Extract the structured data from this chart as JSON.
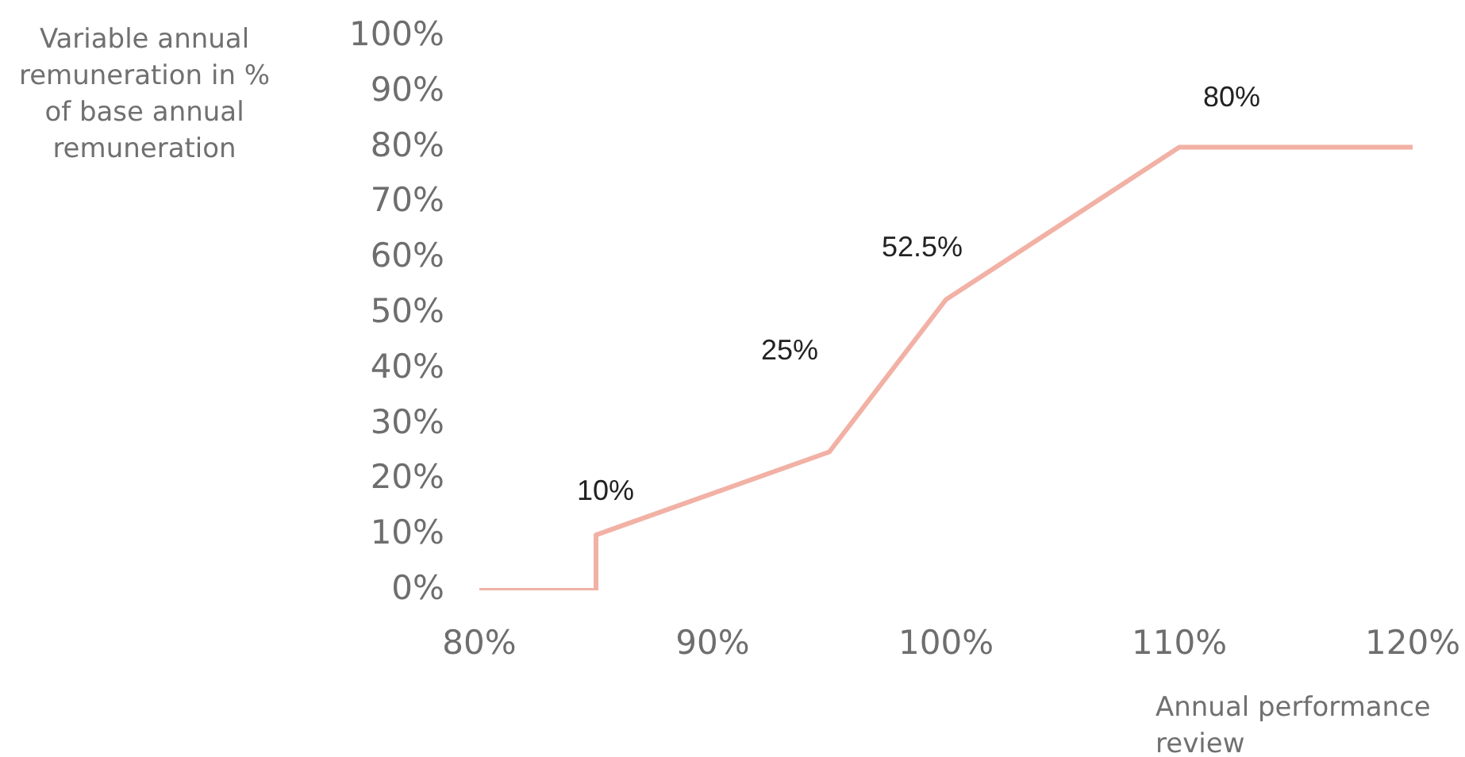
{
  "chart_data": {
    "type": "line",
    "xlabel": "Annual performance review",
    "ylabel": "Variable annual remuneration in % of base annual remuneration",
    "x": [
      80,
      85,
      85,
      95,
      100,
      110,
      120
    ],
    "values": [
      0,
      0,
      10,
      25,
      52.5,
      80,
      80
    ],
    "color": "#f2b1a5",
    "marker": "none",
    "value_labels": [
      null,
      null,
      "10%",
      "25%",
      "52.5%",
      "80%",
      null
    ],
    "xlim": [
      80,
      120
    ],
    "xticks": [
      {
        "value": 80,
        "label": "80%"
      },
      {
        "value": 90,
        "label": "90%"
      },
      {
        "value": 100,
        "label": "100%"
      },
      {
        "value": 110,
        "label": "110%"
      },
      {
        "value": 120,
        "label": "120%"
      }
    ],
    "ylim": [
      0,
      100
    ],
    "yticks": [
      {
        "value": 0,
        "label": "0%"
      },
      {
        "value": 10,
        "label": "10%"
      },
      {
        "value": 20,
        "label": "20%"
      },
      {
        "value": 30,
        "label": "30%"
      },
      {
        "value": 40,
        "label": "40%"
      },
      {
        "value": 50,
        "label": "50%"
      },
      {
        "value": 60,
        "label": "60%"
      },
      {
        "value": 70,
        "label": "70%"
      },
      {
        "value": 80,
        "label": "80%"
      },
      {
        "value": 90,
        "label": "90%"
      },
      {
        "value": 100,
        "label": "100%"
      }
    ]
  }
}
